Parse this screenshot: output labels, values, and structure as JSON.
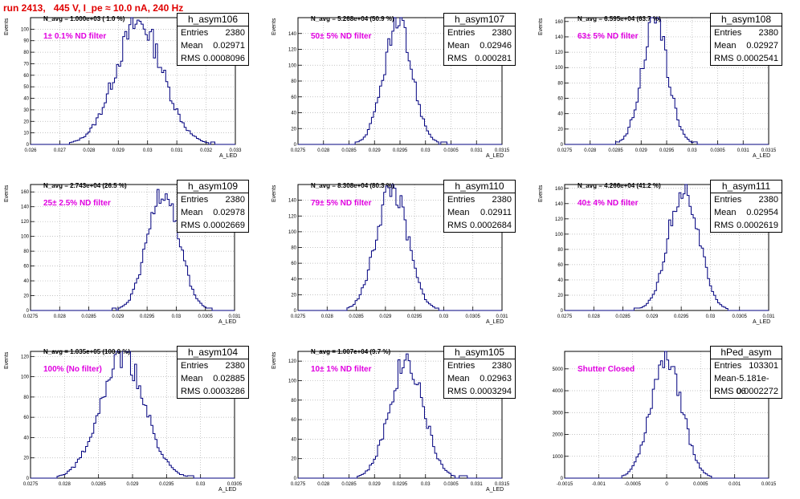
{
  "header": {
    "title": "run 2413,   445 V, I_pe ≈ 10.0 nA, 240 Hz"
  },
  "colors": {
    "title": "#e00000",
    "filter_text": "#e000e0",
    "histogram": "#00007f",
    "grid": "#b0b0b0"
  },
  "chart_data": [
    {
      "type": "histogram",
      "name": "h_asym106",
      "n_avg": "N_avg = 1.000e+03 ( 1.0 %)",
      "filter": "1± 0.1% ND filter",
      "stats": {
        "entries": "2380",
        "mean": "0.02971",
        "rms": "0.0008096"
      },
      "xlabel": "A_LED",
      "ylabel": "Events",
      "xlim": [
        0.026,
        0.033
      ],
      "ylim": [
        0,
        110
      ],
      "xticks": [
        "0.026",
        "0.027",
        "0.028",
        "0.029",
        "0.03",
        "0.031",
        "0.032",
        "0.033"
      ],
      "yticks": [
        "0",
        "10",
        "20",
        "30",
        "40",
        "50",
        "60",
        "70",
        "80",
        "90",
        "100"
      ],
      "shape": {
        "mean": 0.02971,
        "rms": 0.0008096,
        "peak": 105,
        "xmin": 0.02735,
        "xmax": 0.0323
      }
    },
    {
      "type": "histogram",
      "name": "h_asym107",
      "n_avg": "N_avg = 5.268e+04 (50.9 %)",
      "filter": "50± 5% ND filter",
      "stats": {
        "entries": "2380",
        "mean": "0.02946",
        "rms": "0.000281"
      },
      "xlabel": "A_LED",
      "ylabel": "Events",
      "xlim": [
        0.0275,
        0.0315
      ],
      "ylim": [
        0,
        160
      ],
      "xticks": [
        "0.0275",
        "0.028",
        "0.0285",
        "0.029",
        "0.0295",
        "0.03",
        "0.0305",
        "0.031",
        "0.0315"
      ],
      "yticks": [
        "0",
        "20",
        "40",
        "60",
        "80",
        "100",
        "120",
        "140"
      ],
      "shape": {
        "mean": 0.02946,
        "rms": 0.000281,
        "peak": 150,
        "xmin": 0.0286,
        "xmax": 0.0304
      }
    },
    {
      "type": "histogram",
      "name": "h_asym108",
      "n_avg": "N_avg = 6.595e+04 (63.7 %)",
      "filter": "63± 5% ND filter",
      "stats": {
        "entries": "2380",
        "mean": "0.02927",
        "rms": "0.0002541"
      },
      "xlabel": "A_LED",
      "ylabel": "Events",
      "xlim": [
        0.0275,
        0.0315
      ],
      "ylim": [
        0,
        165
      ],
      "xticks": [
        "0.0275",
        "0.028",
        "0.0285",
        "0.029",
        "0.0295",
        "0.03",
        "0.0305",
        "0.031",
        "0.0315"
      ],
      "yticks": [
        "0",
        "20",
        "40",
        "60",
        "80",
        "100",
        "120",
        "140",
        "160"
      ],
      "shape": {
        "mean": 0.02927,
        "rms": 0.0002541,
        "peak": 160,
        "xmin": 0.0285,
        "xmax": 0.0301
      }
    },
    {
      "type": "histogram",
      "name": "h_asym109",
      "n_avg": "N_avg = 2.743e+04 (26.5 %)",
      "filter": "25± 2.5% ND filter",
      "stats": {
        "entries": "2380",
        "mean": "0.02978",
        "rms": "0.0002669"
      },
      "xlabel": "A_LED",
      "ylabel": "Events",
      "xlim": [
        0.0275,
        0.031
      ],
      "ylim": [
        0,
        170
      ],
      "xticks": [
        "0.0275",
        "0.028",
        "0.0285",
        "0.029",
        "0.0295",
        "0.03",
        "0.0305",
        "0.031"
      ],
      "yticks": [
        "0",
        "20",
        "40",
        "60",
        "80",
        "100",
        "120",
        "140",
        "160"
      ],
      "shape": {
        "mean": 0.02978,
        "rms": 0.0002669,
        "peak": 165,
        "xmin": 0.0289,
        "xmax": 0.0306
      }
    },
    {
      "type": "histogram",
      "name": "h_asym110",
      "n_avg": "N_avg = 8.308e+04 (80.3 %)",
      "filter": "79± 5% ND filter",
      "stats": {
        "entries": "2380",
        "mean": "0.02911",
        "rms": "0.0002684"
      },
      "xlabel": "A_LED",
      "ylabel": "Events",
      "xlim": [
        0.0275,
        0.031
      ],
      "ylim": [
        0,
        160
      ],
      "xticks": [
        "0.0275",
        "0.028",
        "0.0285",
        "0.029",
        "0.0295",
        "0.03",
        "0.0305",
        "0.031"
      ],
      "yticks": [
        "0",
        "20",
        "40",
        "60",
        "80",
        "100",
        "120",
        "140"
      ],
      "shape": {
        "mean": 0.02911,
        "rms": 0.0002684,
        "peak": 155,
        "xmin": 0.0283,
        "xmax": 0.03
      }
    },
    {
      "type": "histogram",
      "name": "h_asym111",
      "n_avg": "N_avg = 4.266e+04 (41.2 %)",
      "filter": "40± 4% ND filter",
      "stats": {
        "entries": "2380",
        "mean": "0.02954",
        "rms": "0.0002619"
      },
      "xlabel": "A_LED",
      "ylabel": "Events",
      "xlim": [
        0.0275,
        0.031
      ],
      "ylim": [
        0,
        165
      ],
      "xticks": [
        "0.0275",
        "0.028",
        "0.0285",
        "0.029",
        "0.0295",
        "0.03",
        "0.0305",
        "0.031"
      ],
      "yticks": [
        "0",
        "20",
        "40",
        "60",
        "80",
        "100",
        "120",
        "140",
        "160"
      ],
      "shape": {
        "mean": 0.02954,
        "rms": 0.0002619,
        "peak": 160,
        "xmin": 0.0287,
        "xmax": 0.0304
      }
    },
    {
      "type": "histogram",
      "name": "h_asym104",
      "n_avg": "N_avg = 1.035e+05 (100.0 %)",
      "filter": "100% (No filter)",
      "stats": {
        "entries": "2380",
        "mean": "0.02885",
        "rms": "0.0003286"
      },
      "xlabel": "A_LED",
      "ylabel": "Events",
      "xlim": [
        0.0275,
        0.0305
      ],
      "ylim": [
        0,
        125
      ],
      "xticks": [
        "0.0275",
        "0.028",
        "0.0285",
        "0.029",
        "0.0295",
        "0.03",
        "0.0305"
      ],
      "yticks": [
        "0",
        "20",
        "40",
        "60",
        "80",
        "100",
        "120"
      ],
      "shape": {
        "mean": 0.02885,
        "rms": 0.0003286,
        "peak": 120,
        "xmin": 0.0279,
        "xmax": 0.0299
      }
    },
    {
      "type": "histogram",
      "name": "h_asym105",
      "n_avg": "N_avg = 1.007e+04 (9.7 %)",
      "filter": "10± 1% ND filter",
      "stats": {
        "entries": "2380",
        "mean": "0.02963",
        "rms": "0.0003294"
      },
      "xlabel": "A_LED",
      "ylabel": "Events",
      "xlim": [
        0.0275,
        0.0315
      ],
      "ylim": [
        0,
        130
      ],
      "xticks": [
        "0.0275",
        "0.028",
        "0.0285",
        "0.029",
        "0.0295",
        "0.03",
        "0.0305",
        "0.031",
        "0.0315"
      ],
      "yticks": [
        "0",
        "20",
        "40",
        "60",
        "80",
        "100",
        "120"
      ],
      "shape": {
        "mean": 0.02963,
        "rms": 0.0003294,
        "peak": 122,
        "xmin": 0.0286,
        "xmax": 0.0308
      }
    },
    {
      "type": "histogram",
      "name": "hPed_asym",
      "n_avg": "",
      "filter": "Shutter Closed",
      "stats": {
        "entries": "103301",
        "mean": "-5.181e-06",
        "rms": "0.0002272"
      },
      "xlabel": "",
      "ylabel": "",
      "xlim": [
        -0.0015,
        0.0015
      ],
      "ylim": [
        0,
        5800
      ],
      "xticks": [
        "-0.0015",
        "-0.001",
        "-0.0005",
        "0",
        "0.0005",
        "0.001",
        "0.0015"
      ],
      "yticks": [
        "0",
        "1000",
        "2000",
        "3000",
        "4000",
        "5000"
      ],
      "shape": {
        "mean": -5.181e-06,
        "rms": 0.0002272,
        "peak": 5650,
        "xmin": -0.0007,
        "xmax": 0.0007
      }
    }
  ]
}
